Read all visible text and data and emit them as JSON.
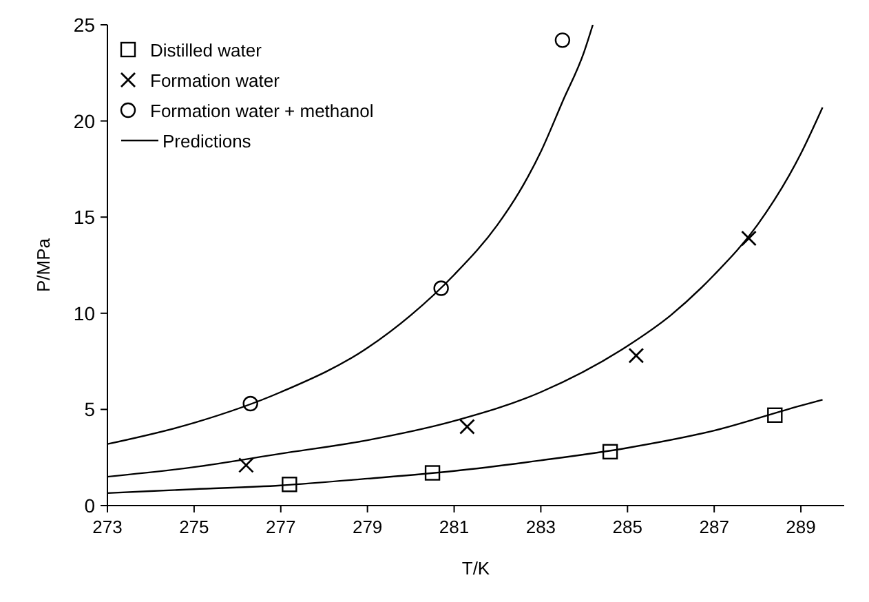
{
  "chart_data": {
    "type": "scatter",
    "xlabel": "T/K",
    "ylabel": "P/MPa",
    "xlim": [
      273,
      290
    ],
    "ylim": [
      0,
      25
    ],
    "xticks": [
      273,
      275,
      277,
      279,
      281,
      283,
      285,
      287,
      289
    ],
    "yticks": [
      0,
      5,
      10,
      15,
      20,
      25
    ],
    "grid": false,
    "legend": "top left",
    "series": [
      {
        "name": "Distilled water",
        "marker": "square",
        "color": "#000000",
        "x": [
          277.2,
          280.5,
          284.6,
          288.4
        ],
        "values": [
          1.1,
          1.7,
          2.8,
          4.7
        ]
      },
      {
        "name": "Formation water",
        "marker": "cross",
        "color": "#000000",
        "x": [
          276.2,
          281.3,
          285.2,
          287.8
        ],
        "values": [
          2.1,
          4.1,
          7.8,
          13.9
        ]
      },
      {
        "name": "Formation water + methanol",
        "marker": "circle",
        "color": "#000000",
        "x": [
          276.3,
          280.7,
          283.5
        ],
        "values": [
          5.3,
          11.3,
          24.2
        ]
      },
      {
        "name": "Predictions",
        "type": "line",
        "marker": "none",
        "line_style": "solid",
        "color": "#000000",
        "x": [
          273,
          275,
          277,
          279,
          281,
          283,
          285,
          287,
          289,
          289.5
        ],
        "values": [
          0.65,
          0.85,
          1.05,
          1.4,
          1.8,
          2.35,
          3.0,
          3.9,
          5.2,
          5.5
        ]
      },
      {
        "type": "line",
        "marker": "none",
        "line_style": "solid",
        "color": "#000000",
        "x": [
          273,
          275,
          277,
          279,
          281,
          283,
          285,
          286,
          287,
          288,
          289,
          289.5
        ],
        "values": [
          1.5,
          2.0,
          2.7,
          3.4,
          4.4,
          5.9,
          8.3,
          9.9,
          12.0,
          14.6,
          18.3,
          20.7
        ]
      },
      {
        "type": "line",
        "marker": "none",
        "line_style": "solid",
        "color": "#000000",
        "x": [
          273,
          275,
          277,
          279,
          280,
          281,
          282,
          282.5,
          283,
          283.5,
          284,
          284.2
        ],
        "values": [
          3.2,
          4.3,
          5.9,
          8.2,
          9.9,
          12.0,
          14.6,
          16.3,
          18.4,
          21.0,
          23.6,
          25.0
        ]
      }
    ]
  }
}
